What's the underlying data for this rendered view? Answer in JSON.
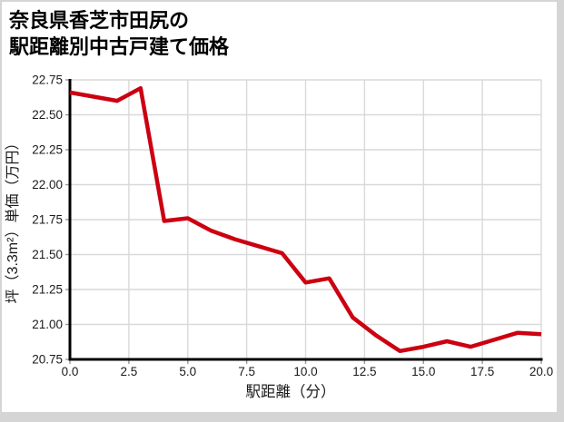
{
  "chart_data": {
    "type": "line",
    "title": "奈良県香芝市田尻の駅距離別中古戸建て価格",
    "title_lines": [
      "奈良県香芝市田尻の",
      "駅距離別中古戸建て価格"
    ],
    "xlabel": "駅距離（分）",
    "ylabel": "坪（3.3m²）単価（万円）",
    "x": [
      0,
      1,
      2,
      3,
      4,
      5,
      6,
      7,
      8,
      9,
      10,
      11,
      12,
      13,
      14,
      15,
      16,
      17,
      18,
      19,
      20
    ],
    "values": [
      22.66,
      22.63,
      22.6,
      22.69,
      21.74,
      21.76,
      21.67,
      21.61,
      21.56,
      21.51,
      21.3,
      21.33,
      21.05,
      20.92,
      20.81,
      20.84,
      20.88,
      20.84,
      20.89,
      20.94,
      20.93
    ],
    "xlim": [
      0,
      20
    ],
    "ylim": [
      20.75,
      22.75
    ],
    "xticks": {
      "values": [
        0,
        2.5,
        5,
        7.5,
        10,
        12.5,
        15,
        17.5,
        20
      ],
      "labels": [
        "0.0",
        "2.5",
        "5.0",
        "7.5",
        "10.0",
        "12.5",
        "15.0",
        "17.5",
        "20.0"
      ]
    },
    "yticks": {
      "values": [
        20.75,
        21.0,
        21.25,
        21.5,
        21.75,
        22.0,
        22.25,
        22.5,
        22.75
      ],
      "labels": [
        "20.75",
        "21.00",
        "21.25",
        "21.50",
        "21.75",
        "22.00",
        "22.25",
        "22.50",
        "22.75"
      ]
    },
    "grid": true,
    "legend": "none",
    "colors": {
      "line": "#cc0011",
      "grid": "#d9d9d9",
      "axis": "#000000",
      "tick": "#999999",
      "text": "#1a1a1a",
      "background": "#ffffff",
      "frame_border": "#d5d5d5"
    }
  }
}
